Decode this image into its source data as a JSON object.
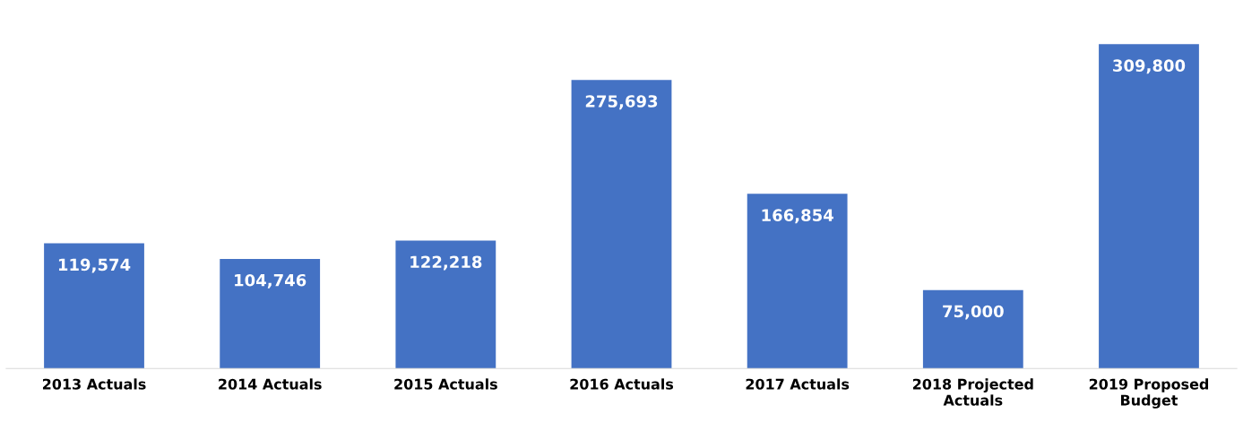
{
  "chart_data": {
    "type": "bar",
    "categories": [
      "2013 Actuals",
      "2014 Actuals",
      "2015 Actuals",
      "2016 Actuals",
      "2017 Actuals",
      "2018 Projected\nActuals",
      "2019 Proposed\nBudget"
    ],
    "values": [
      119574,
      104746,
      122218,
      275693,
      166854,
      75000,
      309800
    ],
    "color": "#4472c4",
    "value_labels": [
      "119,574",
      "104,746",
      "122,218",
      "275,693",
      "166,854",
      "75,000",
      "309,800"
    ],
    "grid": false,
    "legend": false
  }
}
